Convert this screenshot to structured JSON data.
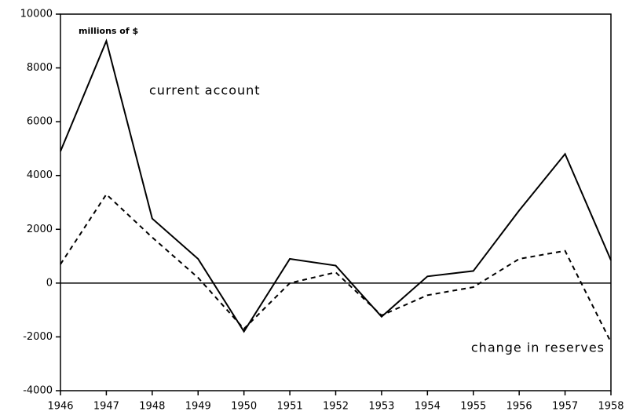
{
  "chart_data": {
    "type": "line",
    "subtitle": "millions of $",
    "x": [
      1946,
      1947,
      1948,
      1949,
      1950,
      1951,
      1952,
      1953,
      1954,
      1955,
      1956,
      1957,
      1958
    ],
    "series": [
      {
        "name": "current account",
        "color": "#000000",
        "dashed": false,
        "values": [
          4900,
          9000,
          2400,
          900,
          -1800,
          900,
          650,
          -1250,
          250,
          450,
          2700,
          4800,
          850
        ]
      },
      {
        "name": "change in reserves",
        "color": "#000000",
        "dashed": true,
        "values": [
          700,
          3300,
          1700,
          200,
          -1700,
          0,
          400,
          -1200,
          -450,
          -150,
          900,
          1200,
          -2200
        ]
      }
    ],
    "xlim": [
      1946,
      1958
    ],
    "xticks": [
      1946,
      1947,
      1948,
      1949,
      1950,
      1951,
      1952,
      1953,
      1954,
      1955,
      1956,
      1957,
      1958
    ],
    "ylim": [
      -4000,
      10000
    ],
    "yticks": [
      -4000,
      -2000,
      0,
      2000,
      4000,
      6000,
      8000,
      10000
    ],
    "grid": false
  }
}
